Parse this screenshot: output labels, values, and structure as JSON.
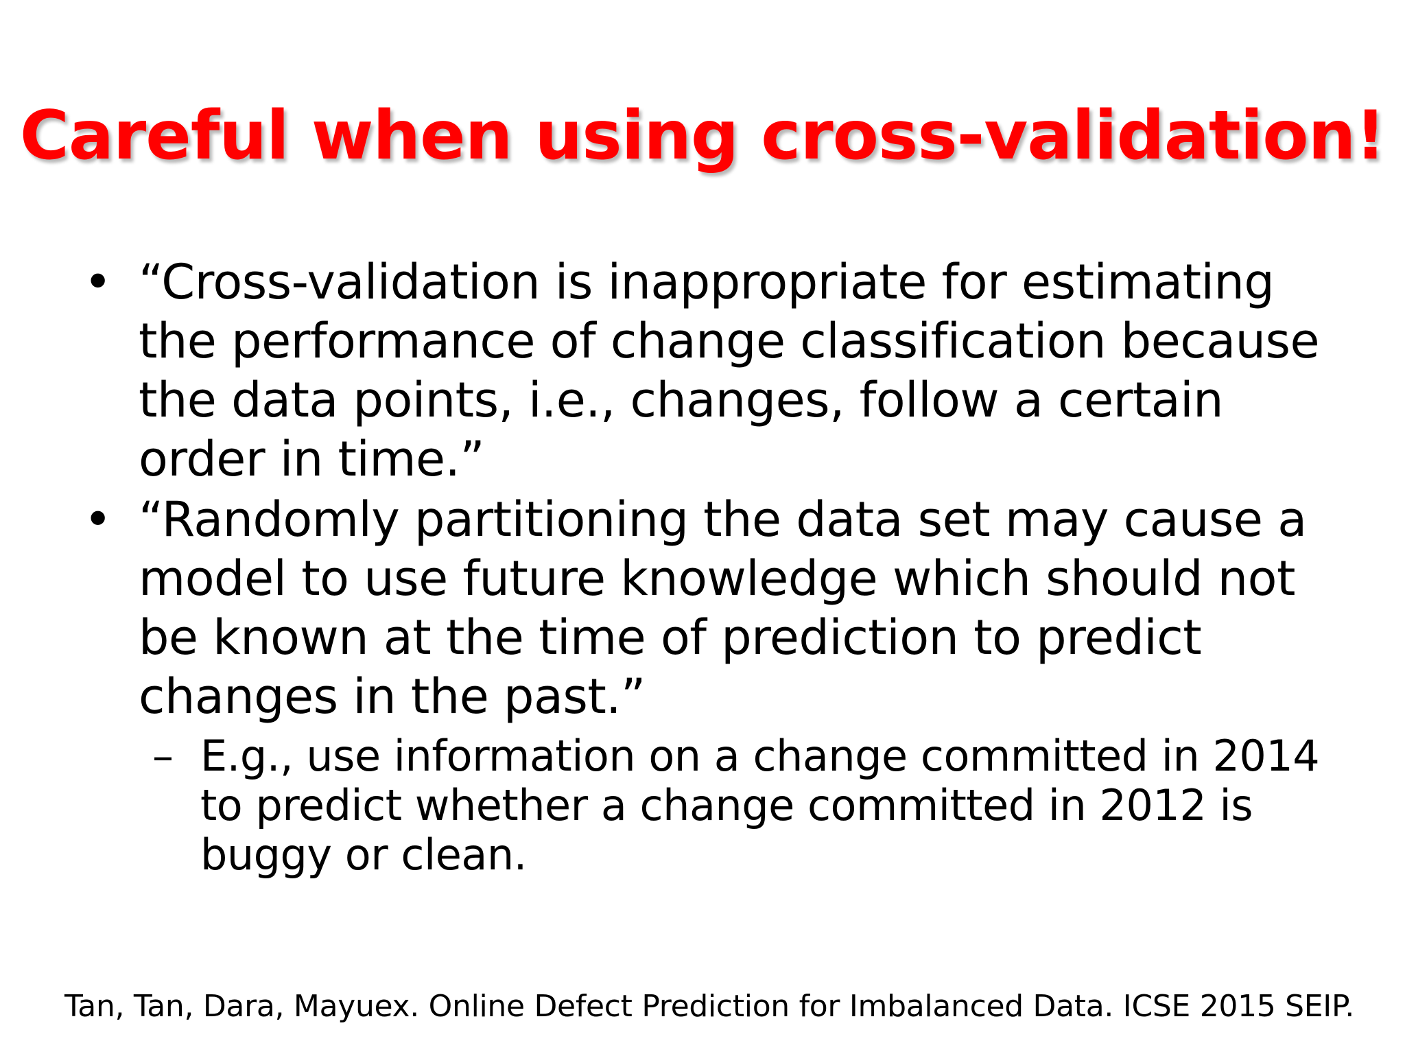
{
  "slide": {
    "title": "Careful when using cross-validation!",
    "bullets": [
      {
        "marker": "•",
        "text": "“Cross-validation is inappropriate for estimating the performance of change classification because the data points, i.e., changes, follow a certain order in time.”"
      },
      {
        "marker": "•",
        "text": "“Randomly partitioning the data set may cause a model to use future knowledge which should not be known at the time of prediction to predict changes in the past.”"
      }
    ],
    "sub_bullet": {
      "marker": "–",
      "text": "E.g., use information on a change committed in 2014 to predict whether a change committed in 2012 is buggy or clean."
    },
    "citation": "Tan, Tan, Dara, Mayuex. Online Defect Prediction for Imbalanced Data. ICSE 2015 SEIP."
  },
  "colors": {
    "title": "#ff0000",
    "body_text": "#000000",
    "background": "#ffffff"
  }
}
